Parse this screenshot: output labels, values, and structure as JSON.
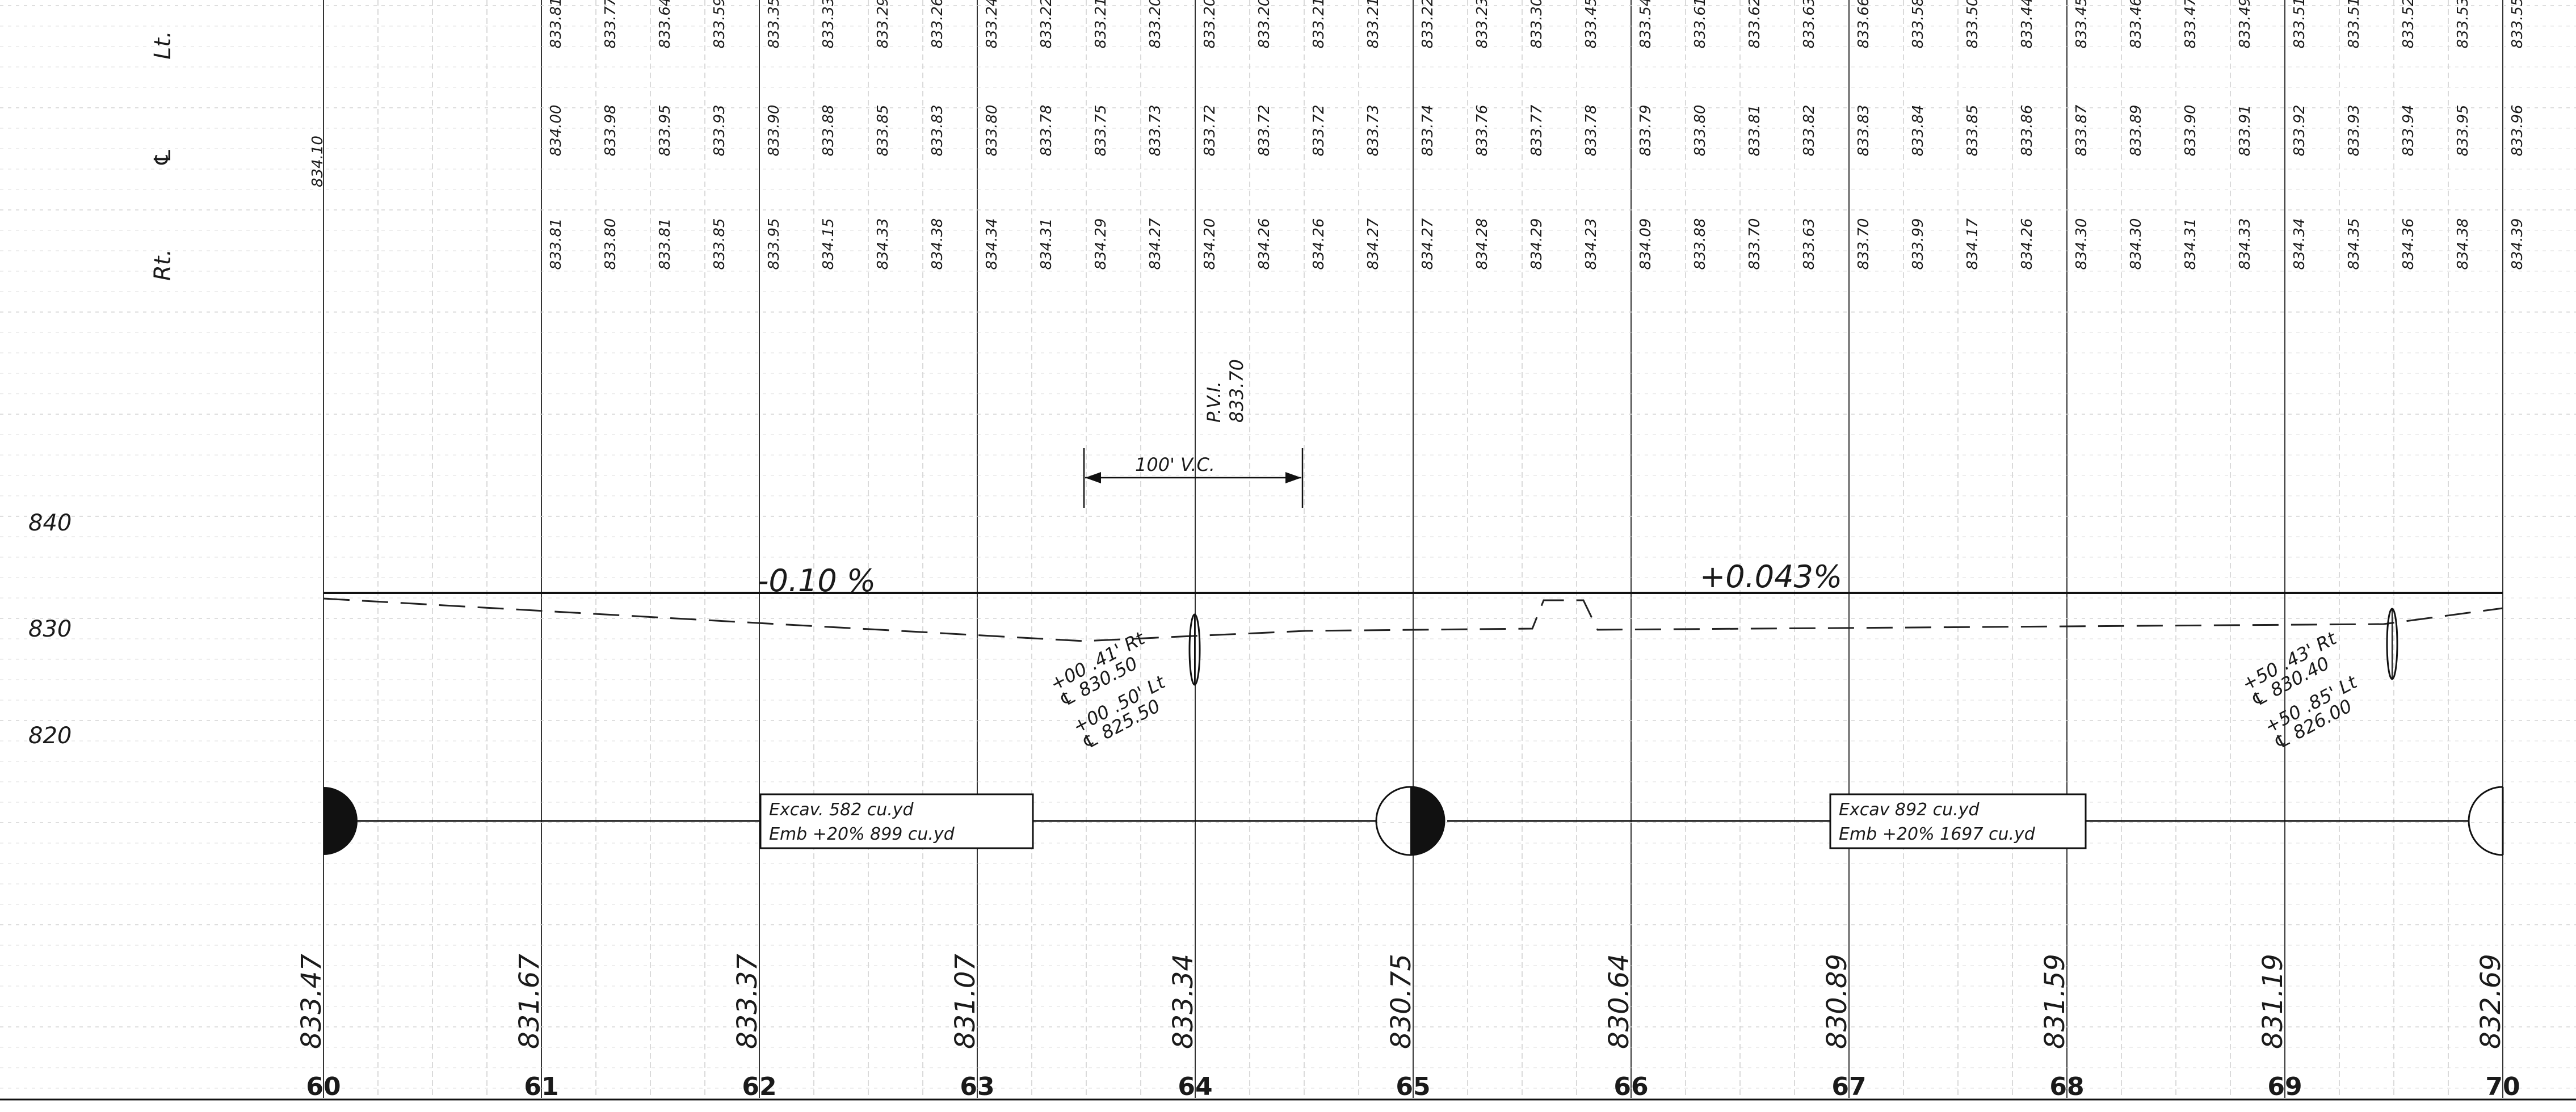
{
  "headers": {
    "left": "Lt.",
    "center": "℄",
    "right": "Rt."
  },
  "elevation_scale": [
    "840",
    "830",
    "820"
  ],
  "stations": [
    "60",
    "61",
    "62",
    "63",
    "64",
    "65",
    "66",
    "67",
    "68",
    "69",
    "70"
  ],
  "ground_elevations": [
    "833.47",
    "831.67",
    "833.37",
    "831.07",
    "833.34",
    "830.75",
    "830.64",
    "830.89",
    "831.59",
    "831.19",
    "832.69"
  ],
  "centerline_start": "834.10",
  "cross_sections": {
    "left": [
      "833.81",
      "833.77",
      "833.64",
      "833.59",
      "833.35",
      "833.33",
      "833.29",
      "833.26",
      "833.24",
      "833.22",
      "833.21",
      "833.20",
      "833.20",
      "833.20",
      "833.21",
      "833.21",
      "833.22",
      "833.23",
      "833.30",
      "833.45",
      "833.54",
      "833.61",
      "833.62",
      "833.63",
      "833.66",
      "833.58",
      "833.50",
      "833.44",
      "833.45",
      "833.46",
      "833.47",
      "833.49",
      "833.51",
      "833.51",
      "833.52",
      "833.53",
      "833.55"
    ],
    "center": [
      "834.00",
      "833.98",
      "833.95",
      "833.93",
      "833.90",
      "833.88",
      "833.85",
      "833.83",
      "833.80",
      "833.78",
      "833.75",
      "833.73",
      "833.72",
      "833.72",
      "833.72",
      "833.73",
      "833.74",
      "833.76",
      "833.77",
      "833.78",
      "833.79",
      "833.80",
      "833.81",
      "833.82",
      "833.83",
      "833.84",
      "833.85",
      "833.86",
      "833.87",
      "833.89",
      "833.90",
      "833.91",
      "833.92",
      "833.93",
      "833.94",
      "833.95",
      "833.96"
    ],
    "right": [
      "833.81",
      "833.80",
      "833.81",
      "833.85",
      "833.95",
      "834.15",
      "834.33",
      "834.38",
      "834.34",
      "834.31",
      "834.29",
      "834.27",
      "834.20",
      "834.26",
      "834.26",
      "834.27",
      "834.27",
      "834.28",
      "834.29",
      "834.23",
      "834.09",
      "833.88",
      "833.70",
      "833.63",
      "833.70",
      "833.99",
      "834.17",
      "834.26",
      "834.30",
      "834.30",
      "834.31",
      "834.33",
      "834.34",
      "834.35",
      "834.36",
      "834.38",
      "834.39"
    ]
  },
  "grades": {
    "left": "-0.10 %",
    "right": "+0.043%"
  },
  "pvi": {
    "label": "P.V.I.",
    "elevation": "833.70"
  },
  "vertical_curve": "100' V.C.",
  "earthwork": [
    {
      "line1": "Excav.   582 cu.yd",
      "line2": "Emb +20%  899 cu.yd"
    },
    {
      "line1": "Excav   892 cu.yd",
      "line2": "Emb +20% 1697 cu.yd"
    }
  ],
  "notes": {
    "left": [
      "+00 .41' Rt",
      "℄ 830.50",
      "+00 .50' Lt",
      "℄ 825.50"
    ],
    "right": [
      "+50 .43' Rt",
      "℄ 830.40",
      "+50 .85' Lt",
      "℄ 826.00"
    ]
  }
}
